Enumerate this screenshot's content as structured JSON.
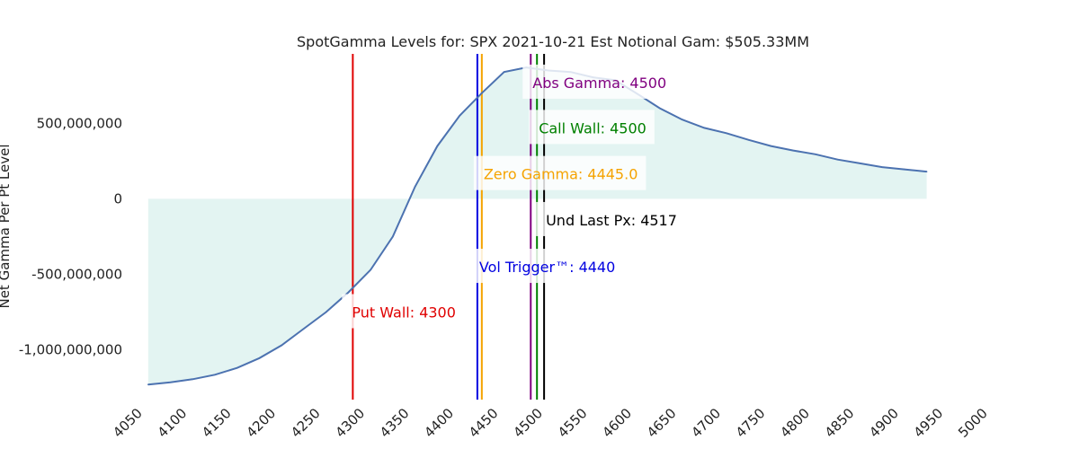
{
  "chart_data": {
    "type": "area",
    "title": "SpotGamma Levels for: SPX  2021-10-21 Est Notional Gam: $505.33MM",
    "xlabel": "",
    "ylabel": "Net Gamma Per Pt Level",
    "xlim": [
      4050,
      5000
    ],
    "ylim": [
      -1330000000,
      960000000
    ],
    "x_ticks": [
      4050,
      4100,
      4150,
      4200,
      4250,
      4300,
      4350,
      4400,
      4450,
      4500,
      4550,
      4600,
      4650,
      4700,
      4750,
      4800,
      4850,
      4900,
      4950,
      5000
    ],
    "y_ticks": [
      {
        "value": 500000000,
        "label": "500,000,000"
      },
      {
        "value": 0,
        "label": "0"
      },
      {
        "value": -500000000,
        "label": "-500,000,000"
      },
      {
        "value": -1000000000,
        "label": "-1,000,000,000"
      }
    ],
    "grid": false,
    "series": [
      {
        "line_color": "#4c72b0",
        "fill_color": "#e3f4f2",
        "x": [
          4070,
          4095,
          4120,
          4145,
          4170,
          4195,
          4220,
          4245,
          4270,
          4295,
          4320,
          4345,
          4370,
          4395,
          4420,
          4445,
          4470,
          4495,
          4520,
          4545,
          4570,
          4595,
          4620,
          4645,
          4670,
          4695,
          4720,
          4745,
          4770,
          4795,
          4820,
          4845,
          4870,
          4895,
          4920,
          4945
        ],
        "y": [
          -1230000000,
          -1215000000,
          -1195000000,
          -1165000000,
          -1120000000,
          -1055000000,
          -970000000,
          -860000000,
          -750000000,
          -620000000,
          -470000000,
          -250000000,
          80000000,
          350000000,
          550000000,
          700000000,
          840000000,
          870000000,
          850000000,
          840000000,
          805000000,
          785000000,
          695000000,
          600000000,
          525000000,
          470000000,
          435000000,
          390000000,
          350000000,
          320000000,
          295000000,
          260000000,
          235000000,
          210000000,
          195000000,
          180000000
        ]
      }
    ],
    "levels": [
      {
        "name": "put-wall",
        "label": "Put Wall: 4300",
        "x": 4300,
        "color": "#e00000",
        "label_y": -750000000
      },
      {
        "name": "vol-trigger",
        "label": "Vol Trigger™: 4440",
        "x": 4440,
        "color": "#0000e0",
        "label_y": -450000000
      },
      {
        "name": "zero-gamma",
        "label": "Zero Gamma: 4445.0",
        "x": 4445,
        "color": "#f5a300",
        "label_y": 165000000
      },
      {
        "name": "abs-gamma",
        "label": "Abs Gamma: 4500",
        "x": 4500,
        "color": "#800080",
        "label_y": 770000000
      },
      {
        "name": "call-wall",
        "label": "Call Wall: 4500",
        "x": 4507,
        "color": "#008000",
        "label_y": 470000000
      },
      {
        "name": "und-last-px",
        "label": "Und Last Px: 4517",
        "x": 4515,
        "color": "#000000",
        "label_y": -140000000
      }
    ]
  }
}
